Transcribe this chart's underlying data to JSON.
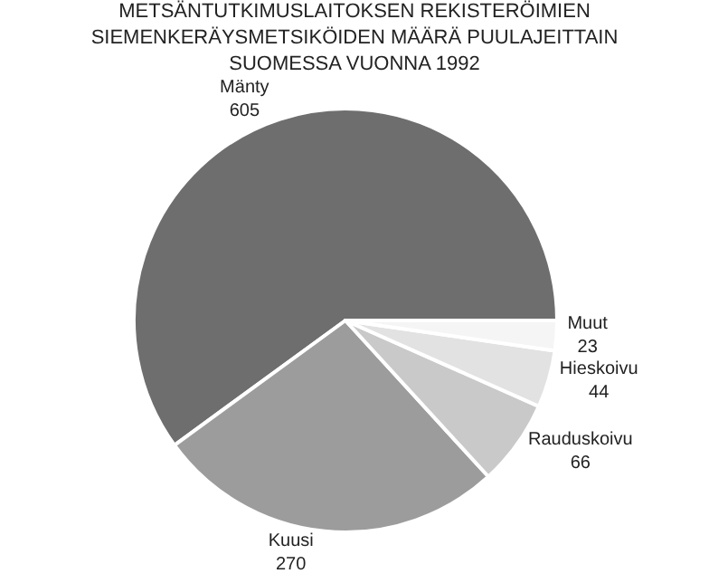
{
  "chart_data": {
    "type": "pie",
    "title": "METSÄNTUTKIMUSLAITOKSEN REKISTERÖIMIEN SIEMENKERÄYSMETSIKÖIDEN MÄÄRÄ PUULAJEITTAIN SUOMESSA VUONNA 1992",
    "categories": [
      "Mänty",
      "Kuusi",
      "Rauduskoivu",
      "Hieskoivu",
      "Muut"
    ],
    "values": [
      605,
      270,
      66,
      44,
      23
    ],
    "colors": [
      "#6e6e6e",
      "#9c9c9c",
      "#c9c9c9",
      "#e2e2e2",
      "#f5f5f5"
    ],
    "data_labels": true
  }
}
